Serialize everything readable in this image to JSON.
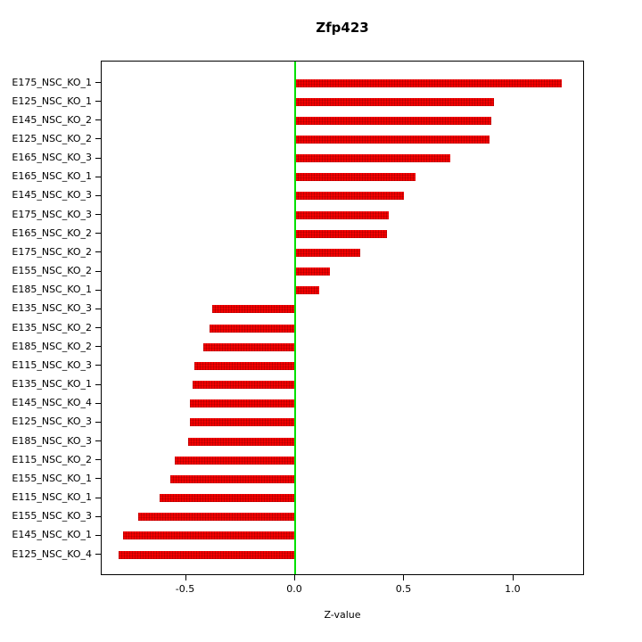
{
  "chart_data": {
    "type": "bar",
    "orientation": "horizontal",
    "title": "Zfp423",
    "xlabel": "Z-value",
    "ylabel": "",
    "xlim": [
      -0.886,
      1.327
    ],
    "x_tick_values": [
      -0.5,
      0.0,
      0.5,
      1.0
    ],
    "x_tick_labels": [
      "-0.5",
      "0.0",
      "0.5",
      "1.0"
    ],
    "grid": false,
    "legend": false,
    "bar_color": "#f40000",
    "zero_line_color": "#00e000",
    "categories": [
      "E175_NSC_KO_1",
      "E125_NSC_KO_1",
      "E145_NSC_KO_2",
      "E125_NSC_KO_2",
      "E165_NSC_KO_3",
      "E165_NSC_KO_1",
      "E145_NSC_KO_3",
      "E175_NSC_KO_3",
      "E165_NSC_KO_2",
      "E175_NSC_KO_2",
      "E155_NSC_KO_2",
      "E185_NSC_KO_1",
      "E135_NSC_KO_3",
      "E135_NSC_KO_2",
      "E185_NSC_KO_2",
      "E115_NSC_KO_3",
      "E135_NSC_KO_1",
      "E145_NSC_KO_4",
      "E125_NSC_KO_3",
      "E185_NSC_KO_3",
      "E115_NSC_KO_2",
      "E155_NSC_KO_1",
      "E115_NSC_KO_1",
      "E155_NSC_KO_3",
      "E145_NSC_KO_1",
      "E125_NSC_KO_4"
    ],
    "values": [
      1.22,
      0.91,
      0.9,
      0.89,
      0.71,
      0.55,
      0.5,
      0.43,
      0.42,
      0.3,
      0.16,
      0.11,
      -0.38,
      -0.39,
      -0.42,
      -0.46,
      -0.47,
      -0.48,
      -0.48,
      -0.49,
      -0.55,
      -0.57,
      -0.62,
      -0.72,
      -0.79,
      -0.81
    ]
  }
}
